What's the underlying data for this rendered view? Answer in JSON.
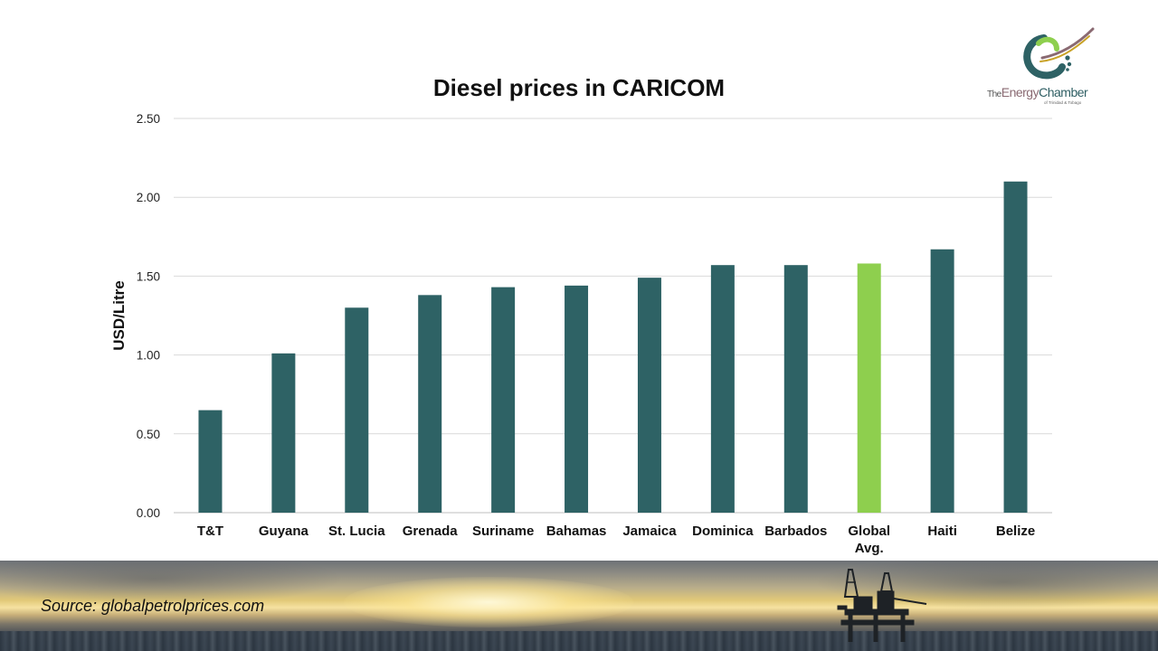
{
  "chart_data": {
    "type": "bar",
    "title": "Diesel prices in CARICOM",
    "xlabel": "",
    "ylabel": "USD/Litre",
    "ylim": [
      0,
      2.5
    ],
    "yticks": [
      "0.00",
      "0.50",
      "1.00",
      "1.50",
      "2.00",
      "2.50"
    ],
    "categories": [
      "T&T",
      "Guyana",
      "St. Lucia",
      "Grenada",
      "Suriname",
      "Bahamas",
      "Jamaica",
      "Dominica",
      "Barbados",
      "Global Avg.",
      "Haiti",
      "Belize"
    ],
    "values": [
      0.65,
      1.01,
      1.3,
      1.38,
      1.43,
      1.44,
      1.49,
      1.57,
      1.57,
      1.58,
      1.67,
      2.1
    ],
    "grid": true,
    "legend": "none",
    "colors": {
      "default": "#2e6265",
      "highlight": "#8ecf4e",
      "gridline": "#d9d9d9"
    },
    "highlight_category": "Global Avg."
  },
  "footer": {
    "source": "Source: globalpetrolprices.com"
  },
  "logo": {
    "the": "The",
    "energy": "Energy",
    "chamber": "Chamber",
    "subtitle": "of Trinidad & Tobago"
  }
}
